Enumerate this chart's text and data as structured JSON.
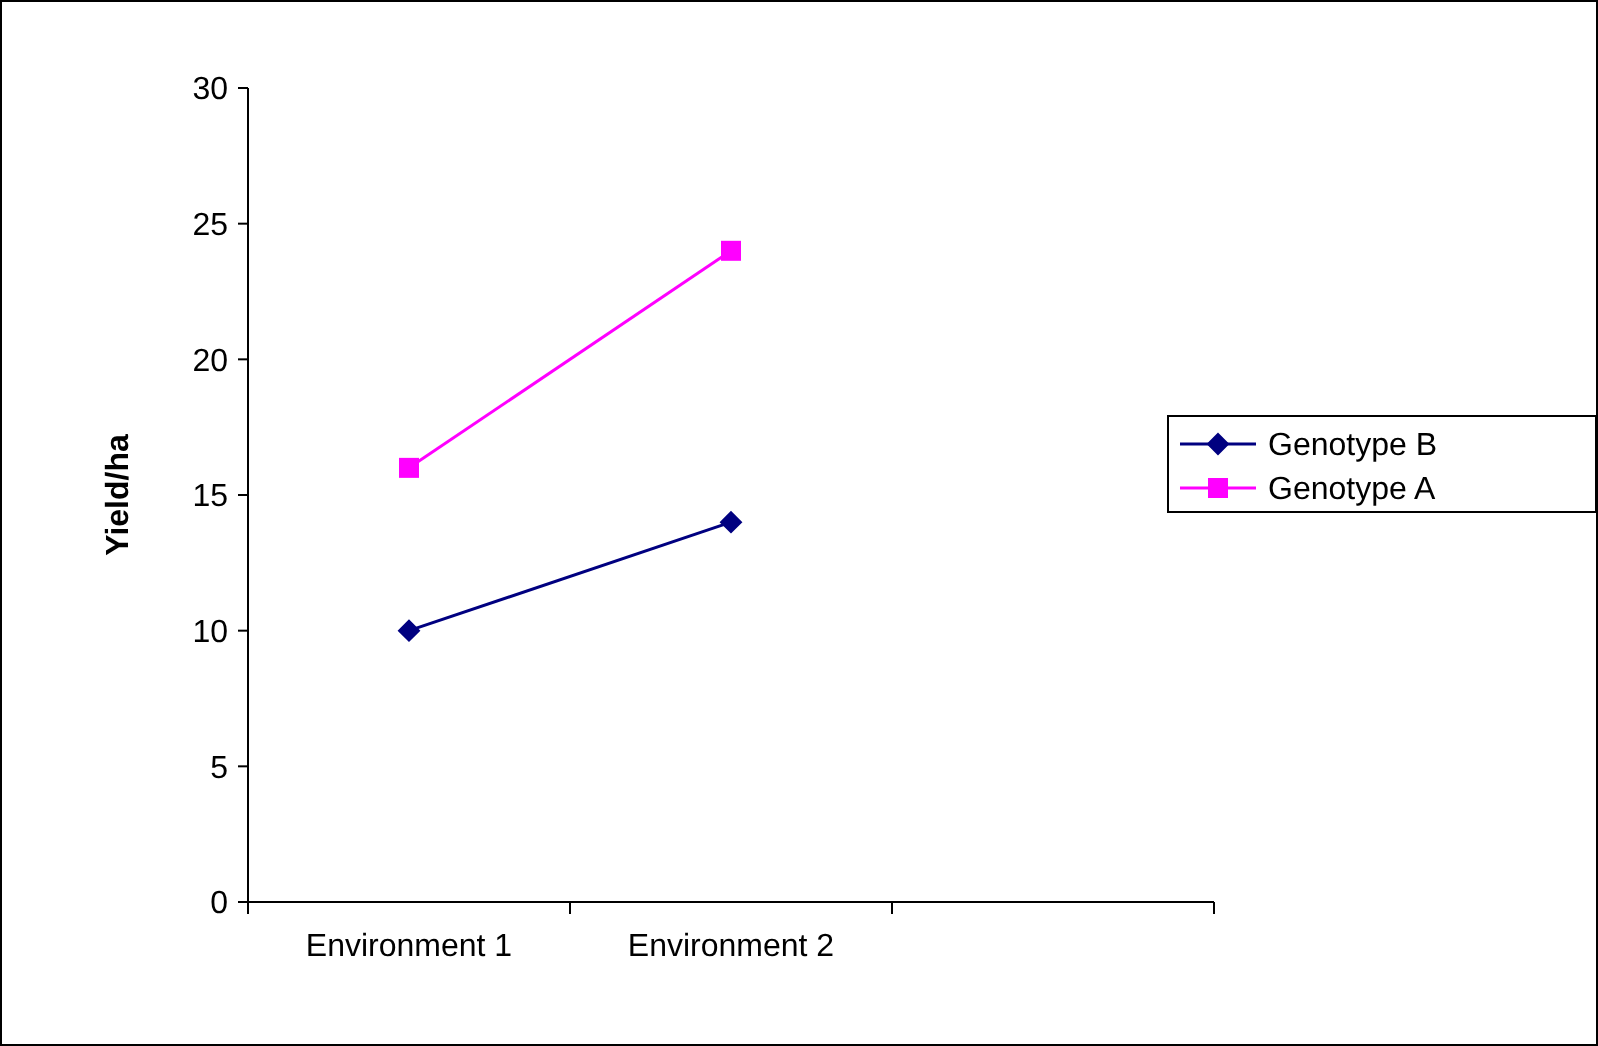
{
  "chart_data": {
    "type": "line",
    "ylabel": "Yield/ha",
    "categories": [
      "Environment 1",
      "Environment 2",
      null
    ],
    "series": [
      {
        "name": "Genotype B",
        "color": "#000080",
        "values": [
          10,
          14,
          null
        ],
        "marker": "diamond"
      },
      {
        "name": "Genotype A",
        "color": "#ff00ff",
        "values": [
          16,
          24,
          null
        ],
        "marker": "square"
      }
    ],
    "ylim": [
      0,
      30
    ],
    "yticks": [
      0,
      5,
      10,
      15,
      20,
      25,
      30
    ],
    "grid": false,
    "legend": "right",
    "line_style": "solid"
  }
}
